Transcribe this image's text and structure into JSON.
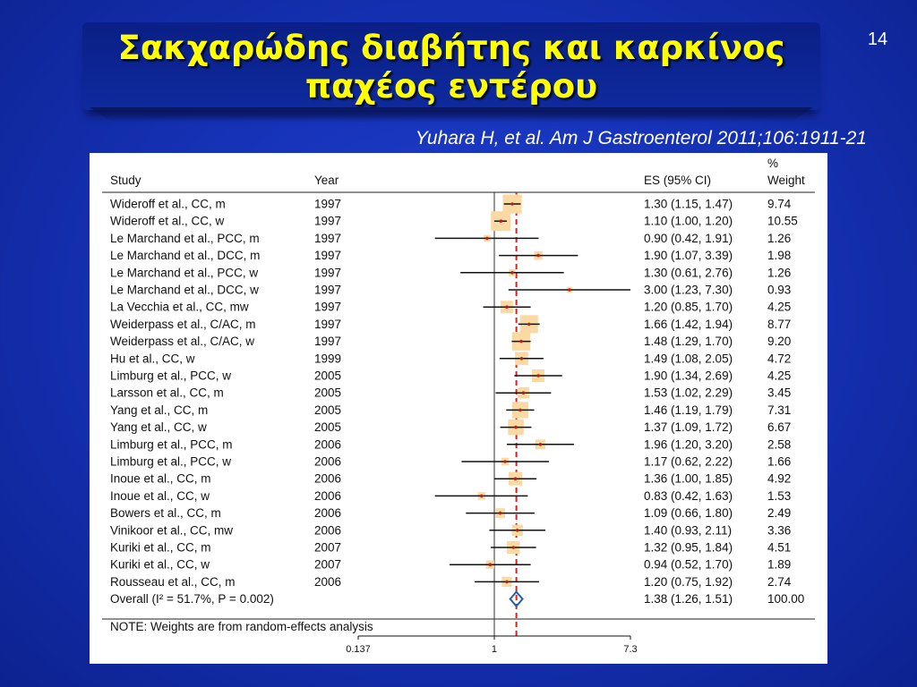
{
  "slide": {
    "title_line_1": "Σακχαρώδης διαβήτης και καρκίνος",
    "title_line_2": "παχέος εντέρου",
    "page_number": "14",
    "citation": "Yuhara H, et al. Am J Gastroenterol 2011;106:1911-21"
  },
  "colors": {
    "background": "#1633b8",
    "title_text": "#ffff00",
    "weight_box": "#fbd9a3",
    "pooled_line": "#e02020",
    "diamond": "#1f5fa8"
  },
  "chart_data": {
    "type": "forest",
    "headers": {
      "study": "Study",
      "year": "Year",
      "es": "ES (95% CI)",
      "weight_1": "%",
      "weight_2": "Weight"
    },
    "x_scale": "log",
    "xlim": [
      0.137,
      7.3
    ],
    "x_ticks": [
      "0.137",
      "1",
      "7.3"
    ],
    "reference_value": 1,
    "pooled_estimate": 1.38,
    "studies": [
      {
        "study": "Wideroff et al., CC, m",
        "year": "1997",
        "es": 1.3,
        "lo": 1.15,
        "hi": 1.47,
        "es_text": "1.30 (1.15, 1.47)",
        "weight": "9.74"
      },
      {
        "study": "Wideroff et al., CC, w",
        "year": "1997",
        "es": 1.1,
        "lo": 1.0,
        "hi": 1.2,
        "es_text": "1.10 (1.00, 1.20)",
        "weight": "10.55"
      },
      {
        "study": "Le Marchand et al., PCC, m",
        "year": "1997",
        "es": 0.9,
        "lo": 0.42,
        "hi": 1.91,
        "es_text": "0.90 (0.42, 1.91)",
        "weight": "1.26"
      },
      {
        "study": "Le Marchand et al., DCC, m",
        "year": "1997",
        "es": 1.9,
        "lo": 1.07,
        "hi": 3.39,
        "es_text": "1.90 (1.07, 3.39)",
        "weight": "1.98"
      },
      {
        "study": "Le Marchand et al., PCC, w",
        "year": "1997",
        "es": 1.3,
        "lo": 0.61,
        "hi": 2.76,
        "es_text": "1.30 (0.61, 2.76)",
        "weight": "1.26"
      },
      {
        "study": "Le Marchand  et al., DCC, w",
        "year": "1997",
        "es": 3.0,
        "lo": 1.23,
        "hi": 7.3,
        "es_text": "3.00 (1.23, 7.30)",
        "weight": "0.93"
      },
      {
        "study": "La Vecchia  et al., CC, mw",
        "year": "1997",
        "es": 1.2,
        "lo": 0.85,
        "hi": 1.7,
        "es_text": "1.20 (0.85, 1.70)",
        "weight": "4.25"
      },
      {
        "study": "Weiderpass et al., C/AC, m",
        "year": "1997",
        "es": 1.66,
        "lo": 1.42,
        "hi": 1.94,
        "es_text": "1.66 (1.42, 1.94)",
        "weight": "8.77"
      },
      {
        "study": "Weiderpass et al., C/AC, w",
        "year": "1997",
        "es": 1.48,
        "lo": 1.29,
        "hi": 1.7,
        "es_text": "1.48 (1.29, 1.70)",
        "weight": "9.20"
      },
      {
        "study": "Hu  et al., CC, w",
        "year": "1999",
        "es": 1.49,
        "lo": 1.08,
        "hi": 2.05,
        "es_text": "1.49 (1.08, 2.05)",
        "weight": "4.72"
      },
      {
        "study": "Limburg et al., PCC, w",
        "year": "2005",
        "es": 1.9,
        "lo": 1.34,
        "hi": 2.69,
        "es_text": "1.90 (1.34, 2.69)",
        "weight": "4.25"
      },
      {
        "study": "Larsson  et al., CC, m",
        "year": "2005",
        "es": 1.53,
        "lo": 1.02,
        "hi": 2.29,
        "es_text": "1.53 (1.02, 2.29)",
        "weight": "3.45"
      },
      {
        "study": "Yang  et al., CC, m",
        "year": "2005",
        "es": 1.46,
        "lo": 1.19,
        "hi": 1.79,
        "es_text": "1.46 (1.19, 1.79)",
        "weight": "7.31"
      },
      {
        "study": "Yang et al., CC, w",
        "year": "2005",
        "es": 1.37,
        "lo": 1.09,
        "hi": 1.72,
        "es_text": "1.37 (1.09, 1.72)",
        "weight": "6.67"
      },
      {
        "study": "Limburg et al., PCC, m",
        "year": "2006",
        "es": 1.96,
        "lo": 1.2,
        "hi": 3.2,
        "es_text": "1.96 (1.20, 3.20)",
        "weight": "2.58"
      },
      {
        "study": "Limburg et al., PCC, w",
        "year": "2006",
        "es": 1.17,
        "lo": 0.62,
        "hi": 2.22,
        "es_text": "1.17 (0.62, 2.22)",
        "weight": "1.66"
      },
      {
        "study": "Inoue et al., CC, m",
        "year": "2006",
        "es": 1.36,
        "lo": 1.0,
        "hi": 1.85,
        "es_text": "1.36 (1.00, 1.85)",
        "weight": "4.92"
      },
      {
        "study": "Inoue et al., CC, w",
        "year": "2006",
        "es": 0.83,
        "lo": 0.42,
        "hi": 1.63,
        "es_text": "0.83 (0.42, 1.63)",
        "weight": "1.53"
      },
      {
        "study": "Bowers et al., CC, m",
        "year": "2006",
        "es": 1.09,
        "lo": 0.66,
        "hi": 1.8,
        "es_text": "1.09 (0.66, 1.80)",
        "weight": "2.49"
      },
      {
        "study": "Vinikoor et al., CC, mw",
        "year": "2006",
        "es": 1.4,
        "lo": 0.93,
        "hi": 2.11,
        "es_text": "1.40 (0.93, 2.11)",
        "weight": "3.36"
      },
      {
        "study": "Kuriki et al., CC, m",
        "year": "2007",
        "es": 1.32,
        "lo": 0.95,
        "hi": 1.84,
        "es_text": "1.32 (0.95, 1.84)",
        "weight": "4.51"
      },
      {
        "study": "Kuriki et al., CC, w",
        "year": "2007",
        "es": 0.94,
        "lo": 0.52,
        "hi": 1.7,
        "es_text": "0.94 (0.52, 1.70)",
        "weight": "1.89"
      },
      {
        "study": "Rousseau et al., CC, m",
        "year": "2006",
        "es": 1.2,
        "lo": 0.75,
        "hi": 1.92,
        "es_text": "1.20 (0.75, 1.92)",
        "weight": "2.74"
      }
    ],
    "overall": {
      "label": "Overall  (I² = 51.7%, P = 0.002)",
      "es": 1.38,
      "lo": 1.26,
      "hi": 1.51,
      "es_text": "1.38 (1.26, 1.51)",
      "weight": "100.00"
    },
    "note": "NOTE: Weights are from random-effects analysis"
  }
}
